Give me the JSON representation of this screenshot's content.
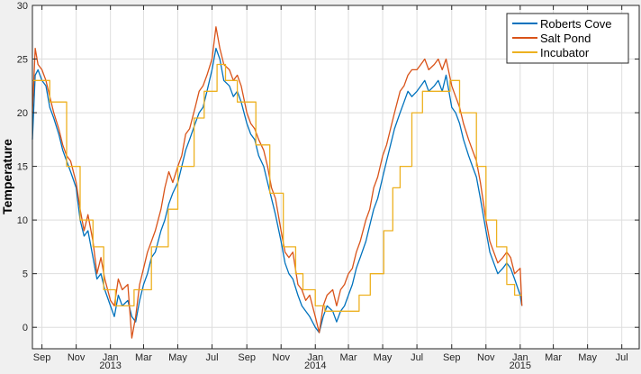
{
  "chart_data": {
    "type": "line",
    "title": "",
    "xlabel": "",
    "ylabel": "Temperature",
    "ylim": [
      -2,
      30
    ],
    "xlim": [
      "2012-08-15",
      "2015-08-01"
    ],
    "grid": true,
    "legend_location": "top-right",
    "y_ticks": [
      0,
      5,
      10,
      15,
      20,
      25,
      30
    ],
    "x_ticks": [
      {
        "date": "2012-09-01",
        "label": "Sep"
      },
      {
        "date": "2012-11-01",
        "label": "Nov"
      },
      {
        "date": "2013-01-01",
        "label": "Jan"
      },
      {
        "date": "2013-03-01",
        "label": "Mar"
      },
      {
        "date": "2013-05-01",
        "label": "May"
      },
      {
        "date": "2013-07-01",
        "label": "Jul"
      },
      {
        "date": "2013-09-01",
        "label": "Sep"
      },
      {
        "date": "2013-11-01",
        "label": "Nov"
      },
      {
        "date": "2014-01-01",
        "label": "Jan"
      },
      {
        "date": "2014-03-01",
        "label": "Mar"
      },
      {
        "date": "2014-05-01",
        "label": "May"
      },
      {
        "date": "2014-07-01",
        "label": "Jul"
      },
      {
        "date": "2014-09-01",
        "label": "Sep"
      },
      {
        "date": "2014-11-01",
        "label": "Nov"
      },
      {
        "date": "2015-01-01",
        "label": "Jan"
      },
      {
        "date": "2015-03-01",
        "label": "Mar"
      },
      {
        "date": "2015-05-01",
        "label": "May"
      },
      {
        "date": "2015-07-01",
        "label": "Jul"
      }
    ],
    "year_labels": [
      {
        "date": "2013-01-01",
        "label": "2013"
      },
      {
        "date": "2014-01-01",
        "label": "2014"
      },
      {
        "date": "2015-01-01",
        "label": "2015"
      }
    ],
    "series": [
      {
        "name": "Roberts Cove",
        "color": "#0072BD",
        "x": [
          "2012-08-15",
          "2012-08-20",
          "2012-08-25",
          "2012-09-01",
          "2012-09-08",
          "2012-09-15",
          "2012-09-22",
          "2012-10-01",
          "2012-10-08",
          "2012-10-15",
          "2012-10-22",
          "2012-11-01",
          "2012-11-08",
          "2012-11-15",
          "2012-11-22",
          "2012-12-01",
          "2012-12-08",
          "2012-12-15",
          "2012-12-22",
          "2013-01-01",
          "2013-01-08",
          "2013-01-15",
          "2013-01-22",
          "2013-02-01",
          "2013-02-08",
          "2013-02-15",
          "2013-02-22",
          "2013-03-01",
          "2013-03-08",
          "2013-03-15",
          "2013-03-22",
          "2013-04-01",
          "2013-04-08",
          "2013-04-15",
          "2013-04-22",
          "2013-05-01",
          "2013-05-08",
          "2013-05-15",
          "2013-05-22",
          "2013-06-01",
          "2013-06-08",
          "2013-06-15",
          "2013-06-22",
          "2013-07-01",
          "2013-07-08",
          "2013-07-15",
          "2013-07-22",
          "2013-08-01",
          "2013-08-08",
          "2013-08-15",
          "2013-08-22",
          "2013-09-01",
          "2013-09-08",
          "2013-09-15",
          "2013-09-22",
          "2013-10-01",
          "2013-10-08",
          "2013-10-15",
          "2013-10-22",
          "2013-11-01",
          "2013-11-08",
          "2013-11-15",
          "2013-11-22",
          "2013-12-01",
          "2013-12-08",
          "2013-12-15",
          "2013-12-22",
          "2014-01-01",
          "2014-01-08",
          "2014-01-15",
          "2014-01-22",
          "2014-02-01",
          "2014-02-08",
          "2014-02-15",
          "2014-02-22",
          "2014-03-01",
          "2014-03-08",
          "2014-03-15",
          "2014-03-22",
          "2014-04-01",
          "2014-04-08",
          "2014-04-15",
          "2014-04-22",
          "2014-05-01",
          "2014-05-08",
          "2014-05-15",
          "2014-05-22",
          "2014-06-01",
          "2014-06-08",
          "2014-06-15",
          "2014-06-22",
          "2014-07-01",
          "2014-07-08",
          "2014-07-15",
          "2014-07-22",
          "2014-08-01",
          "2014-08-08",
          "2014-08-15",
          "2014-08-22",
          "2014-09-01",
          "2014-09-08",
          "2014-09-15",
          "2014-09-22",
          "2014-10-01",
          "2014-10-08",
          "2014-10-15",
          "2014-10-22",
          "2014-11-01",
          "2014-11-08",
          "2014-11-15",
          "2014-11-22",
          "2014-12-01",
          "2014-12-08",
          "2014-12-15",
          "2014-12-22",
          "2015-01-01",
          "2015-01-04"
        ],
        "values": [
          17.5,
          23.5,
          24.0,
          23.0,
          22.5,
          20.5,
          19.5,
          18.0,
          16.5,
          15.5,
          14.5,
          13.0,
          10.0,
          8.5,
          9.0,
          6.5,
          4.5,
          5.0,
          3.5,
          2.0,
          1.0,
          3.0,
          2.0,
          2.5,
          1.0,
          0.5,
          2.5,
          4.0,
          5.0,
          6.5,
          7.0,
          9.0,
          10.0,
          11.5,
          12.5,
          13.5,
          15.0,
          16.5,
          17.5,
          19.0,
          20.0,
          20.5,
          22.0,
          24.0,
          26.0,
          25.0,
          23.0,
          22.5,
          21.5,
          22.0,
          21.0,
          19.0,
          18.0,
          17.5,
          16.0,
          15.0,
          13.5,
          12.0,
          10.5,
          8.0,
          6.0,
          5.0,
          4.5,
          3.0,
          2.0,
          1.5,
          1.0,
          0.0,
          -0.5,
          1.0,
          2.0,
          1.5,
          0.5,
          1.5,
          2.0,
          3.0,
          4.0,
          5.5,
          6.5,
          8.0,
          9.5,
          11.0,
          12.0,
          14.0,
          15.5,
          17.0,
          18.5,
          20.0,
          21.0,
          22.0,
          21.5,
          22.0,
          22.5,
          23.0,
          22.0,
          22.5,
          23.0,
          22.0,
          23.5,
          20.5,
          20.0,
          19.0,
          17.5,
          16.0,
          15.0,
          14.0,
          12.0,
          9.0,
          7.0,
          6.0,
          5.0,
          5.5,
          6.0,
          5.5,
          4.5,
          3.0,
          2.0
        ]
      },
      {
        "name": "Salt Pond",
        "color": "#D95319",
        "x": [
          "2012-08-15",
          "2012-08-20",
          "2012-08-25",
          "2012-09-01",
          "2012-09-08",
          "2012-09-15",
          "2012-09-22",
          "2012-10-01",
          "2012-10-08",
          "2012-10-15",
          "2012-10-22",
          "2012-11-01",
          "2012-11-08",
          "2012-11-15",
          "2012-11-22",
          "2012-12-01",
          "2012-12-08",
          "2012-12-15",
          "2012-12-22",
          "2013-01-01",
          "2013-01-08",
          "2013-01-15",
          "2013-01-22",
          "2013-02-01",
          "2013-02-08",
          "2013-02-15",
          "2013-02-22",
          "2013-03-01",
          "2013-03-08",
          "2013-03-15",
          "2013-03-22",
          "2013-04-01",
          "2013-04-08",
          "2013-04-15",
          "2013-04-22",
          "2013-05-01",
          "2013-05-08",
          "2013-05-15",
          "2013-05-22",
          "2013-06-01",
          "2013-06-08",
          "2013-06-15",
          "2013-06-22",
          "2013-07-01",
          "2013-07-08",
          "2013-07-15",
          "2013-07-22",
          "2013-08-01",
          "2013-08-08",
          "2013-08-15",
          "2013-08-22",
          "2013-09-01",
          "2013-09-08",
          "2013-09-15",
          "2013-09-22",
          "2013-10-01",
          "2013-10-08",
          "2013-10-15",
          "2013-10-22",
          "2013-11-01",
          "2013-11-08",
          "2013-11-15",
          "2013-11-22",
          "2013-12-01",
          "2013-12-08",
          "2013-12-15",
          "2013-12-22",
          "2014-01-01",
          "2014-01-08",
          "2014-01-15",
          "2014-01-22",
          "2014-02-01",
          "2014-02-08",
          "2014-02-15",
          "2014-02-22",
          "2014-03-01",
          "2014-03-08",
          "2014-03-15",
          "2014-03-22",
          "2014-04-01",
          "2014-04-08",
          "2014-04-15",
          "2014-04-22",
          "2014-05-01",
          "2014-05-08",
          "2014-05-15",
          "2014-05-22",
          "2014-06-01",
          "2014-06-08",
          "2014-06-15",
          "2014-06-22",
          "2014-07-01",
          "2014-07-08",
          "2014-07-15",
          "2014-07-22",
          "2014-08-01",
          "2014-08-08",
          "2014-08-15",
          "2014-08-22",
          "2014-09-01",
          "2014-09-08",
          "2014-09-15",
          "2014-09-22",
          "2014-10-01",
          "2014-10-08",
          "2014-10-15",
          "2014-10-22",
          "2014-11-01",
          "2014-11-08",
          "2014-11-15",
          "2014-11-22",
          "2014-12-01",
          "2014-12-08",
          "2014-12-15",
          "2014-12-22",
          "2015-01-01",
          "2015-01-04"
        ],
        "values": [
          20.0,
          26.0,
          24.5,
          24.0,
          23.0,
          21.5,
          20.0,
          18.5,
          17.0,
          16.0,
          15.5,
          13.5,
          11.0,
          9.0,
          10.5,
          8.0,
          5.0,
          6.5,
          4.5,
          2.5,
          2.0,
          4.5,
          3.5,
          4.0,
          -1.0,
          1.0,
          4.0,
          5.5,
          7.0,
          8.0,
          9.0,
          11.0,
          13.0,
          14.5,
          13.5,
          15.0,
          16.0,
          18.0,
          18.5,
          20.5,
          22.0,
          22.5,
          23.5,
          25.0,
          28.0,
          26.0,
          24.5,
          24.0,
          23.0,
          23.5,
          22.5,
          20.0,
          19.0,
          18.5,
          17.5,
          16.5,
          15.0,
          13.0,
          12.0,
          9.0,
          7.0,
          6.5,
          7.0,
          4.0,
          3.5,
          2.5,
          3.0,
          1.0,
          -0.5,
          2.0,
          3.0,
          3.5,
          2.0,
          3.5,
          4.0,
          5.0,
          5.5,
          7.0,
          8.0,
          10.0,
          11.0,
          13.0,
          14.0,
          16.0,
          17.0,
          18.5,
          20.0,
          22.0,
          22.5,
          23.5,
          24.0,
          24.0,
          24.5,
          25.0,
          24.0,
          24.5,
          25.0,
          24.0,
          25.0,
          22.5,
          21.5,
          20.5,
          19.0,
          17.5,
          16.5,
          15.5,
          13.5,
          10.0,
          8.0,
          7.0,
          6.0,
          6.5,
          7.0,
          6.5,
          5.0,
          5.5,
          2.0
        ]
      },
      {
        "name": "Incubator",
        "color": "#EDB120",
        "x": [
          "2012-08-15",
          "2012-08-28",
          "2012-08-28",
          "2012-09-15",
          "2012-09-15",
          "2012-10-15",
          "2012-10-15",
          "2012-11-08",
          "2012-11-08",
          "2012-12-01",
          "2012-12-01",
          "2012-12-20",
          "2012-12-20",
          "2013-01-10",
          "2013-01-10",
          "2013-02-12",
          "2013-02-12",
          "2013-03-15",
          "2013-03-15",
          "2013-04-14",
          "2013-04-14",
          "2013-05-01",
          "2013-05-01",
          "2013-05-30",
          "2013-05-30",
          "2013-06-17",
          "2013-06-17",
          "2013-07-10",
          "2013-07-10",
          "2013-07-25",
          "2013-07-25",
          "2013-08-15",
          "2013-08-15",
          "2013-09-17",
          "2013-09-17",
          "2013-10-12",
          "2013-10-12",
          "2013-11-05",
          "2013-11-05",
          "2013-11-27",
          "2013-11-27",
          "2013-12-10",
          "2013-12-10",
          "2014-01-01",
          "2014-01-01",
          "2014-01-18",
          "2014-01-18",
          "2014-03-20",
          "2014-03-20",
          "2014-04-09",
          "2014-04-09",
          "2014-05-03",
          "2014-05-03",
          "2014-05-19",
          "2014-05-19",
          "2014-06-01",
          "2014-06-01",
          "2014-06-22",
          "2014-06-22",
          "2014-07-11",
          "2014-07-11",
          "2014-08-29",
          "2014-08-29",
          "2014-09-15",
          "2014-09-15",
          "2014-10-15",
          "2014-10-15",
          "2014-11-01",
          "2014-11-01",
          "2014-11-20",
          "2014-11-20",
          "2014-12-08",
          "2014-12-08",
          "2014-12-22",
          "2014-12-22",
          "2015-01-04"
        ],
        "values": [
          23.0,
          23.0,
          23.0,
          23.0,
          21.0,
          21.0,
          15.0,
          15.0,
          10.0,
          10.0,
          7.5,
          7.5,
          3.5,
          3.5,
          2.0,
          2.0,
          3.5,
          3.5,
          7.5,
          7.5,
          11.0,
          11.0,
          15.0,
          15.0,
          19.5,
          19.5,
          22.0,
          22.0,
          24.5,
          24.5,
          23.0,
          23.0,
          21.0,
          21.0,
          17.0,
          17.0,
          12.5,
          12.5,
          7.5,
          7.5,
          5.0,
          5.0,
          3.5,
          3.5,
          2.0,
          2.0,
          1.5,
          1.5,
          3.0,
          3.0,
          5.0,
          5.0,
          9.0,
          9.0,
          13.0,
          13.0,
          15.0,
          15.0,
          20.0,
          20.0,
          22.0,
          22.0,
          23.0,
          23.0,
          20.0,
          20.0,
          15.0,
          15.0,
          10.0,
          10.0,
          7.5,
          7.5,
          4.0,
          4.0,
          3.0,
          3.0
        ]
      }
    ]
  }
}
